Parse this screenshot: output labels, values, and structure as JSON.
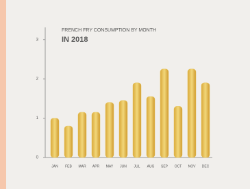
{
  "chart_data": {
    "type": "bar",
    "title": "FRENCH FRY CONSUMPTION BY MONTH",
    "subtitle": "IN 2018",
    "categories": [
      "JAN",
      "FEB",
      "MAR",
      "APR",
      "MAY",
      "JUN",
      "JUL",
      "AUG",
      "SEP",
      "OCT",
      "NOV",
      "DEC"
    ],
    "values": [
      1.0,
      0.8,
      1.15,
      1.15,
      1.4,
      1.45,
      1.9,
      1.55,
      2.25,
      1.3,
      2.25,
      1.9
    ],
    "color": "#e8c45a",
    "ylim": [
      0,
      3.1
    ],
    "yticks": [
      0,
      1,
      2,
      3
    ],
    "grid": false
  }
}
